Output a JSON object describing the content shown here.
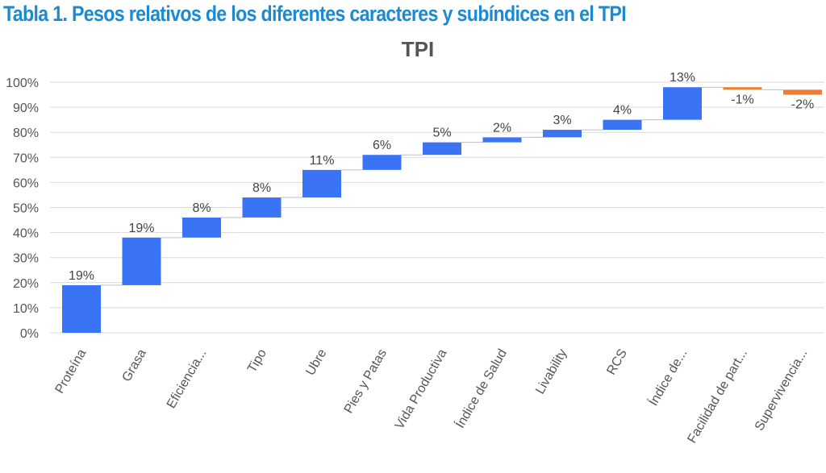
{
  "heading": "Tabla 1. Pesos relativos de los diferentes caracteres y subíndices en el TPI",
  "chart_data": {
    "type": "waterfall",
    "title": "TPI",
    "xlabel": "",
    "ylabel": "",
    "ylim": [
      0,
      100
    ],
    "yticks": [
      "0%",
      "10%",
      "20%",
      "30%",
      "40%",
      "50%",
      "60%",
      "70%",
      "80%",
      "90%",
      "100%"
    ],
    "grid": true,
    "categories": [
      "Proteína",
      "Grasa",
      "Eficiencia...",
      "Tipo",
      "Ubre",
      "Pies y Patas",
      "Vida Productiva",
      "Índice de Salud",
      "Livability",
      "RCS",
      "Índice de...",
      "Facilidad de part...",
      "Supervivencia..."
    ],
    "values": [
      19,
      19,
      8,
      8,
      11,
      6,
      5,
      2,
      3,
      4,
      13,
      -1,
      -2
    ],
    "labels": [
      "19%",
      "19%",
      "8%",
      "8%",
      "11%",
      "6%",
      "5%",
      "2%",
      "3%",
      "4%",
      "13%",
      "-1%",
      "-2%"
    ],
    "increase_color": "#3b73f5",
    "decrease_color": "#ed7d31"
  }
}
